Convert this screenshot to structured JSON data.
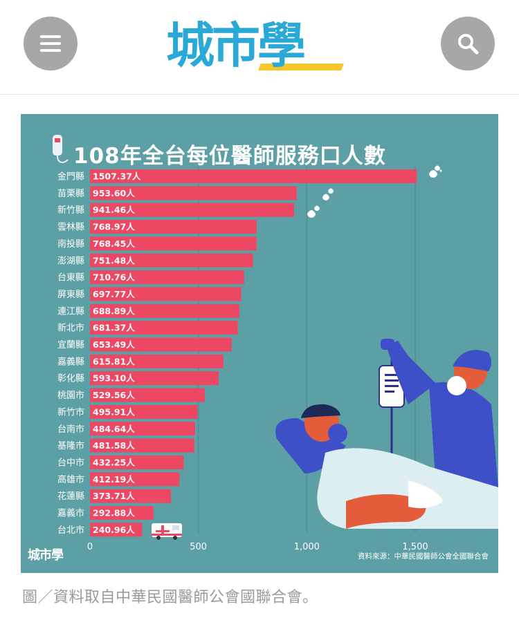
{
  "header": {
    "logo_text": "城市學",
    "menu_icon": "hamburger-menu-icon",
    "search_icon": "search-icon"
  },
  "figure": {
    "title": "108年全台每位醫師服務口人數",
    "source": "資料來源：中華民國醫師公會全國聯合會",
    "brand": "城市學"
  },
  "caption": "圖／資料取自中華民國醫師公會國聯合會。",
  "colors": {
    "background": "#5c9fa5",
    "bar": "#ec4863",
    "text": "#ffffff",
    "logo_blue": "#2aa9d6",
    "logo_yellow": "#f6c72b"
  },
  "chart_data": {
    "type": "bar",
    "orientation": "horizontal",
    "title": "108年全台每位醫師服務口人數",
    "categories": [
      "金門縣",
      "苗栗縣",
      "新竹縣",
      "雲林縣",
      "南投縣",
      "澎湖縣",
      "台東縣",
      "屏東縣",
      "連江縣",
      "新北市",
      "宜蘭縣",
      "嘉義縣",
      "彰化縣",
      "桃園市",
      "新竹市",
      "台南市",
      "基隆市",
      "台中市",
      "高雄市",
      "花蓮縣",
      "嘉義市",
      "台北市"
    ],
    "values": [
      1507.37,
      953.6,
      941.46,
      768.97,
      768.45,
      751.48,
      710.76,
      697.77,
      688.89,
      681.37,
      653.49,
      615.81,
      593.1,
      529.56,
      495.91,
      484.64,
      481.58,
      432.25,
      412.19,
      373.71,
      292.88,
      240.96
    ],
    "value_labels": [
      "1507.37人",
      "953.60人",
      "941.46人",
      "768.97人",
      "768.45人",
      "751.48人",
      "710.76人",
      "697.77人",
      "688.89人",
      "681.37人",
      "653.49人",
      "615.81人",
      "593.10人",
      "529.56人",
      "495.91人",
      "484.64人",
      "481.58人",
      "432.25人",
      "412.19人",
      "373.71人",
      "292.88人",
      "240.96人"
    ],
    "x_ticks": [
      0,
      500,
      1000,
      1500
    ],
    "x_tick_labels": [
      "0",
      "500",
      "1,000",
      "1,500"
    ],
    "xlim": [
      0,
      1800
    ],
    "grid": true
  }
}
